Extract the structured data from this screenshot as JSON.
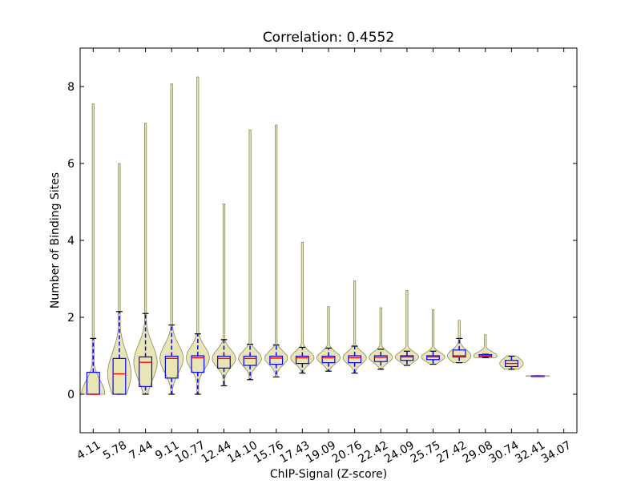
{
  "chart_data": {
    "type": "violin",
    "title": "Correlation: 0.4552",
    "xlabel": "ChIP-Signal (Z-score)",
    "ylabel": "Number of Binding Sites",
    "ylim": [
      -1,
      9
    ],
    "yticks": [
      0,
      2,
      4,
      6,
      8
    ],
    "grid": false,
    "legend": "none",
    "categories": [
      "4.11",
      "5.78",
      "7.44",
      "9.11",
      "10.77",
      "12.44",
      "14.10",
      "15.76",
      "17.43",
      "19.09",
      "20.76",
      "22.42",
      "24.09",
      "25.75",
      "27.42",
      "29.08",
      "30.74",
      "32.41",
      "34.07"
    ],
    "colors": {
      "violin_fill": "#e8e4b0",
      "violin_edge": "#8a8a60",
      "box_edge": "#0000ff",
      "median": "#ff0000",
      "whisker_cap": "#000000"
    },
    "series": [
      {
        "category": "4.11",
        "max": 7.55,
        "whisker_low": 0.0,
        "q1": 0.0,
        "median": 0.0,
        "q3": 0.57,
        "whisker_high": 1.45
      },
      {
        "category": "5.78",
        "max": 6.0,
        "whisker_low": 0.0,
        "q1": 0.0,
        "median": 0.53,
        "q3": 0.93,
        "whisker_high": 2.15
      },
      {
        "category": "7.44",
        "max": 7.05,
        "whisker_low": 0.0,
        "q1": 0.2,
        "median": 0.83,
        "q3": 0.97,
        "whisker_high": 2.1
      },
      {
        "category": "9.11",
        "max": 8.07,
        "whisker_low": 0.0,
        "q1": 0.42,
        "median": 0.93,
        "q3": 0.99,
        "whisker_high": 1.8
      },
      {
        "category": "10.77",
        "max": 8.25,
        "whisker_low": 0.0,
        "q1": 0.57,
        "median": 0.95,
        "q3": 1.0,
        "whisker_high": 1.57
      },
      {
        "category": "12.44",
        "max": 4.95,
        "whisker_low": 0.22,
        "q1": 0.68,
        "median": 0.93,
        "q3": 0.99,
        "whisker_high": 1.42
      },
      {
        "category": "14.10",
        "max": 6.87,
        "whisker_low": 0.38,
        "q1": 0.75,
        "median": 0.93,
        "q3": 0.99,
        "whisker_high": 1.3
      },
      {
        "category": "15.76",
        "max": 7.0,
        "whisker_low": 0.45,
        "q1": 0.78,
        "median": 0.94,
        "q3": 0.99,
        "whisker_high": 1.28
      },
      {
        "category": "17.43",
        "max": 3.95,
        "whisker_low": 0.55,
        "q1": 0.8,
        "median": 0.95,
        "q3": 0.99,
        "whisker_high": 1.22
      },
      {
        "category": "19.09",
        "max": 2.28,
        "whisker_low": 0.6,
        "q1": 0.82,
        "median": 0.95,
        "q3": 0.99,
        "whisker_high": 1.2
      },
      {
        "category": "20.76",
        "max": 2.95,
        "whisker_low": 0.55,
        "q1": 0.82,
        "median": 0.95,
        "q3": 1.0,
        "whisker_high": 1.25
      },
      {
        "category": "22.42",
        "max": 2.25,
        "whisker_low": 0.65,
        "q1": 0.85,
        "median": 0.96,
        "q3": 1.0,
        "whisker_high": 1.17
      },
      {
        "category": "24.09",
        "max": 2.7,
        "whisker_low": 0.75,
        "q1": 0.88,
        "median": 0.97,
        "q3": 1.0,
        "whisker_high": 1.12
      },
      {
        "category": "25.75",
        "max": 2.2,
        "whisker_low": 0.78,
        "q1": 0.9,
        "median": 0.97,
        "q3": 1.0,
        "whisker_high": 1.12
      },
      {
        "category": "27.42",
        "max": 1.92,
        "whisker_low": 0.82,
        "q1": 0.97,
        "median": 1.0,
        "q3": 1.15,
        "whisker_high": 1.45
      },
      {
        "category": "29.08",
        "max": 1.55,
        "whisker_low": 0.95,
        "q1": 0.98,
        "median": 1.0,
        "q3": 1.03,
        "whisker_high": 1.04
      },
      {
        "category": "30.74",
        "max": 1.0,
        "whisker_low": 0.65,
        "q1": 0.72,
        "median": 0.8,
        "q3": 0.88,
        "whisker_high": 0.99
      },
      {
        "category": "32.41",
        "max": 0.48,
        "whisker_low": 0.47,
        "q1": 0.47,
        "median": 0.47,
        "q3": 0.48,
        "whisker_high": 0.48
      },
      {
        "category": "34.07",
        "max": null,
        "whisker_low": null,
        "q1": null,
        "median": null,
        "q3": null,
        "whisker_high": null
      }
    ]
  }
}
